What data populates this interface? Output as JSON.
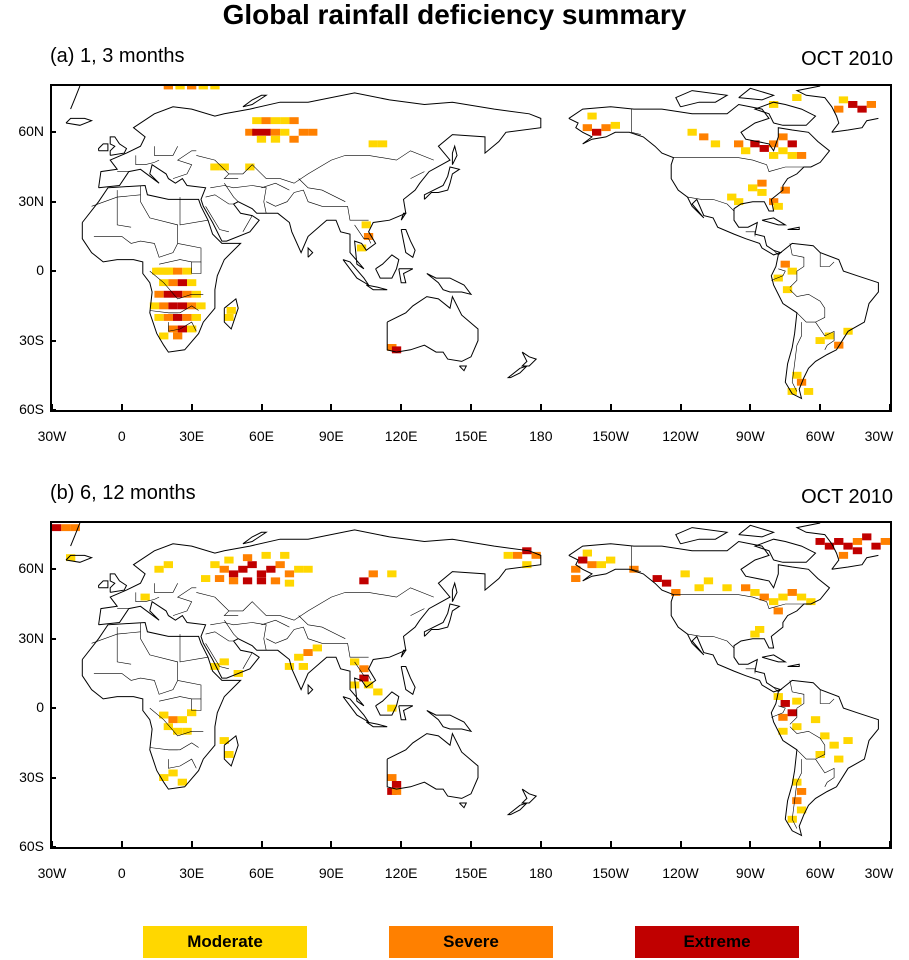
{
  "title": "Global rainfall deficiency summary",
  "panels": [
    {
      "label": "(a) 1, 3 months",
      "date": "OCT 2010",
      "cells": [
        [
          15,
          0,
          "m"
        ],
        [
          16,
          0,
          "m"
        ],
        [
          17,
          0,
          "m"
        ],
        [
          18,
          0,
          "m"
        ],
        [
          19,
          0,
          "m"
        ],
        [
          20,
          0,
          "m"
        ],
        [
          21,
          0,
          "m"
        ],
        [
          20,
          80,
          "s"
        ],
        [
          25,
          80,
          "m"
        ],
        [
          30,
          80,
          "s"
        ],
        [
          35,
          80,
          "m"
        ],
        [
          40,
          80,
          "m"
        ],
        [
          58,
          65,
          "m"
        ],
        [
          62,
          65,
          "s"
        ],
        [
          66,
          65,
          "m"
        ],
        [
          70,
          65,
          "m"
        ],
        [
          74,
          65,
          "s"
        ],
        [
          55,
          60,
          "s"
        ],
        [
          58,
          60,
          "x"
        ],
        [
          62,
          60,
          "x"
        ],
        [
          66,
          60,
          "s"
        ],
        [
          70,
          60,
          "m"
        ],
        [
          78,
          60,
          "s"
        ],
        [
          82,
          60,
          "s"
        ],
        [
          60,
          57,
          "m"
        ],
        [
          66,
          57,
          "m"
        ],
        [
          74,
          57,
          "s"
        ],
        [
          108,
          55,
          "m"
        ],
        [
          112,
          55,
          "m"
        ],
        [
          40,
          45,
          "m"
        ],
        [
          44,
          45,
          "m"
        ],
        [
          55,
          45,
          "m"
        ],
        [
          105,
          20,
          "m"
        ],
        [
          106,
          15,
          "s"
        ],
        [
          103,
          10,
          "m"
        ],
        [
          20,
          0,
          "m"
        ],
        [
          24,
          0,
          "s"
        ],
        [
          28,
          0,
          "m"
        ],
        [
          18,
          -5,
          "m"
        ],
        [
          22,
          -5,
          "s"
        ],
        [
          26,
          -5,
          "x"
        ],
        [
          30,
          -5,
          "m"
        ],
        [
          16,
          -10,
          "s"
        ],
        [
          20,
          -10,
          "x"
        ],
        [
          24,
          -10,
          "x"
        ],
        [
          28,
          -10,
          "s"
        ],
        [
          32,
          -10,
          "m"
        ],
        [
          14,
          -15,
          "m"
        ],
        [
          18,
          -15,
          "s"
        ],
        [
          22,
          -15,
          "x"
        ],
        [
          26,
          -15,
          "x"
        ],
        [
          30,
          -15,
          "s"
        ],
        [
          34,
          -15,
          "m"
        ],
        [
          16,
          -20,
          "m"
        ],
        [
          20,
          -20,
          "s"
        ],
        [
          24,
          -20,
          "x"
        ],
        [
          28,
          -20,
          "s"
        ],
        [
          32,
          -20,
          "m"
        ],
        [
          22,
          -25,
          "s"
        ],
        [
          26,
          -25,
          "x"
        ],
        [
          30,
          -25,
          "m"
        ],
        [
          18,
          -28,
          "m"
        ],
        [
          24,
          -28,
          "s"
        ],
        [
          46,
          -20,
          "m"
        ],
        [
          47,
          -17,
          "m"
        ],
        [
          116,
          -33,
          "s"
        ],
        [
          118,
          -34,
          "x"
        ],
        [
          -160,
          62,
          "s"
        ],
        [
          -156,
          60,
          "x"
        ],
        [
          -152,
          62,
          "s"
        ],
        [
          -148,
          63,
          "m"
        ],
        [
          -158,
          67,
          "m"
        ],
        [
          -115,
          60,
          "m"
        ],
        [
          -110,
          58,
          "s"
        ],
        [
          -105,
          55,
          "m"
        ],
        [
          -95,
          55,
          "s"
        ],
        [
          -92,
          52,
          "m"
        ],
        [
          -88,
          55,
          "x"
        ],
        [
          -84,
          53,
          "x"
        ],
        [
          -80,
          55,
          "s"
        ],
        [
          -76,
          52,
          "m"
        ],
        [
          -72,
          55,
          "x"
        ],
        [
          -76,
          58,
          "s"
        ],
        [
          -80,
          50,
          "m"
        ],
        [
          -72,
          50,
          "m"
        ],
        [
          -68,
          50,
          "s"
        ],
        [
          -85,
          38,
          "s"
        ],
        [
          -89,
          36,
          "m"
        ],
        [
          -85,
          34,
          "m"
        ],
        [
          -80,
          30,
          "s"
        ],
        [
          -95,
          30,
          "m"
        ],
        [
          -98,
          32,
          "m"
        ],
        [
          -78,
          28,
          "m"
        ],
        [
          -75,
          35,
          "s"
        ],
        [
          -52,
          70,
          "s"
        ],
        [
          -46,
          72,
          "x"
        ],
        [
          -42,
          70,
          "x"
        ],
        [
          -38,
          72,
          "s"
        ],
        [
          -50,
          74,
          "m"
        ],
        [
          -70,
          75,
          "m"
        ],
        [
          -80,
          72,
          "m"
        ],
        [
          -75,
          3,
          "s"
        ],
        [
          -72,
          0,
          "m"
        ],
        [
          -78,
          -3,
          "m"
        ],
        [
          -74,
          -8,
          "m"
        ],
        [
          -60,
          -30,
          "m"
        ],
        [
          -56,
          -28,
          "m"
        ],
        [
          -52,
          -32,
          "s"
        ],
        [
          -48,
          -26,
          "m"
        ],
        [
          -70,
          -45,
          "m"
        ],
        [
          -68,
          -48,
          "s"
        ],
        [
          -72,
          -52,
          "m"
        ],
        [
          -65,
          -52,
          "m"
        ]
      ]
    },
    {
      "label": "(b) 6, 12 months",
      "date": "OCT 2010",
      "cells": [
        [
          -28,
          78,
          "x"
        ],
        [
          -24,
          78,
          "s"
        ],
        [
          -20,
          78,
          "s"
        ],
        [
          -22,
          65,
          "m"
        ],
        [
          40,
          62,
          "m"
        ],
        [
          44,
          60,
          "s"
        ],
        [
          48,
          58,
          "x"
        ],
        [
          52,
          60,
          "x"
        ],
        [
          56,
          62,
          "x"
        ],
        [
          60,
          58,
          "x"
        ],
        [
          64,
          60,
          "x"
        ],
        [
          68,
          62,
          "s"
        ],
        [
          72,
          58,
          "s"
        ],
        [
          76,
          60,
          "m"
        ],
        [
          80,
          60,
          "m"
        ],
        [
          36,
          56,
          "m"
        ],
        [
          42,
          56,
          "s"
        ],
        [
          48,
          55,
          "s"
        ],
        [
          54,
          55,
          "x"
        ],
        [
          60,
          55,
          "x"
        ],
        [
          66,
          55,
          "s"
        ],
        [
          72,
          54,
          "m"
        ],
        [
          46,
          64,
          "m"
        ],
        [
          54,
          65,
          "s"
        ],
        [
          62,
          66,
          "m"
        ],
        [
          70,
          66,
          "m"
        ],
        [
          104,
          55,
          "x"
        ],
        [
          108,
          58,
          "s"
        ],
        [
          116,
          58,
          "m"
        ],
        [
          20,
          62,
          "m"
        ],
        [
          16,
          60,
          "m"
        ],
        [
          10,
          48,
          "m"
        ],
        [
          76,
          22,
          "m"
        ],
        [
          80,
          24,
          "s"
        ],
        [
          78,
          18,
          "m"
        ],
        [
          84,
          26,
          "m"
        ],
        [
          72,
          18,
          "m"
        ],
        [
          100,
          20,
          "m"
        ],
        [
          104,
          17,
          "s"
        ],
        [
          104,
          13,
          "x"
        ],
        [
          106,
          10,
          "m"
        ],
        [
          100,
          10,
          "m"
        ],
        [
          110,
          7,
          "m"
        ],
        [
          116,
          0,
          "m"
        ],
        [
          40,
          18,
          "m"
        ],
        [
          44,
          20,
          "m"
        ],
        [
          50,
          15,
          "m"
        ],
        [
          18,
          -3,
          "m"
        ],
        [
          22,
          -5,
          "s"
        ],
        [
          26,
          -5,
          "m"
        ],
        [
          20,
          -8,
          "m"
        ],
        [
          24,
          -10,
          "m"
        ],
        [
          28,
          -10,
          "m"
        ],
        [
          30,
          -2,
          "m"
        ],
        [
          22,
          -28,
          "m"
        ],
        [
          18,
          -30,
          "m"
        ],
        [
          26,
          -32,
          "m"
        ],
        [
          46,
          -20,
          "m"
        ],
        [
          44,
          -14,
          "m"
        ],
        [
          116,
          -30,
          "s"
        ],
        [
          118,
          -33,
          "x"
        ],
        [
          116,
          -36,
          "x"
        ],
        [
          118,
          -36,
          "s"
        ],
        [
          170,
          66,
          "s"
        ],
        [
          174,
          68,
          "x"
        ],
        [
          178,
          66,
          "s"
        ],
        [
          174,
          62,
          "m"
        ],
        [
          166,
          66,
          "m"
        ],
        [
          -165,
          60,
          "s"
        ],
        [
          -162,
          64,
          "x"
        ],
        [
          -158,
          62,
          "s"
        ],
        [
          -154,
          62,
          "m"
        ],
        [
          -150,
          64,
          "m"
        ],
        [
          -160,
          67,
          "m"
        ],
        [
          -165,
          56,
          "s"
        ],
        [
          -140,
          60,
          "s"
        ],
        [
          -130,
          56,
          "x"
        ],
        [
          -126,
          54,
          "x"
        ],
        [
          -122,
          50,
          "s"
        ],
        [
          -118,
          58,
          "m"
        ],
        [
          -112,
          52,
          "m"
        ],
        [
          -108,
          55,
          "m"
        ],
        [
          -100,
          52,
          "m"
        ],
        [
          -92,
          52,
          "s"
        ],
        [
          -88,
          50,
          "m"
        ],
        [
          -84,
          48,
          "s"
        ],
        [
          -80,
          46,
          "m"
        ],
        [
          -76,
          48,
          "m"
        ],
        [
          -72,
          50,
          "s"
        ],
        [
          -68,
          48,
          "m"
        ],
        [
          -64,
          46,
          "m"
        ],
        [
          -78,
          42,
          "s"
        ],
        [
          -88,
          32,
          "m"
        ],
        [
          -86,
          34,
          "m"
        ],
        [
          -60,
          72,
          "x"
        ],
        [
          -56,
          70,
          "x"
        ],
        [
          -52,
          72,
          "x"
        ],
        [
          -48,
          70,
          "x"
        ],
        [
          -44,
          72,
          "s"
        ],
        [
          -40,
          74,
          "x"
        ],
        [
          -36,
          70,
          "x"
        ],
        [
          -32,
          72,
          "s"
        ],
        [
          -50,
          66,
          "s"
        ],
        [
          -44,
          68,
          "x"
        ],
        [
          -78,
          5,
          "m"
        ],
        [
          -75,
          2,
          "x"
        ],
        [
          -72,
          -2,
          "x"
        ],
        [
          -76,
          -4,
          "s"
        ],
        [
          -70,
          3,
          "m"
        ],
        [
          -76,
          -10,
          "m"
        ],
        [
          -70,
          -8,
          "m"
        ],
        [
          -62,
          -5,
          "m"
        ],
        [
          -58,
          -12,
          "m"
        ],
        [
          -54,
          -16,
          "m"
        ],
        [
          -48,
          -14,
          "m"
        ],
        [
          -60,
          -20,
          "m"
        ],
        [
          -52,
          -22,
          "m"
        ],
        [
          -68,
          -36,
          "s"
        ],
        [
          -70,
          -40,
          "s"
        ],
        [
          -68,
          -44,
          "m"
        ],
        [
          -72,
          -48,
          "m"
        ],
        [
          -70,
          -32,
          "m"
        ]
      ]
    }
  ],
  "lat_labels": [
    "60N",
    "30N",
    "0",
    "30S",
    "60S"
  ],
  "lon_labels": [
    "30W",
    "0",
    "30E",
    "60E",
    "90E",
    "120E",
    "150E",
    "180",
    "150W",
    "120W",
    "90W",
    "60W",
    "30W"
  ],
  "legend": [
    {
      "label": "Moderate",
      "color": "#FFD700"
    },
    {
      "label": "Severe",
      "color": "#FF8000"
    },
    {
      "label": "Extreme",
      "color": "#C00000"
    }
  ]
}
